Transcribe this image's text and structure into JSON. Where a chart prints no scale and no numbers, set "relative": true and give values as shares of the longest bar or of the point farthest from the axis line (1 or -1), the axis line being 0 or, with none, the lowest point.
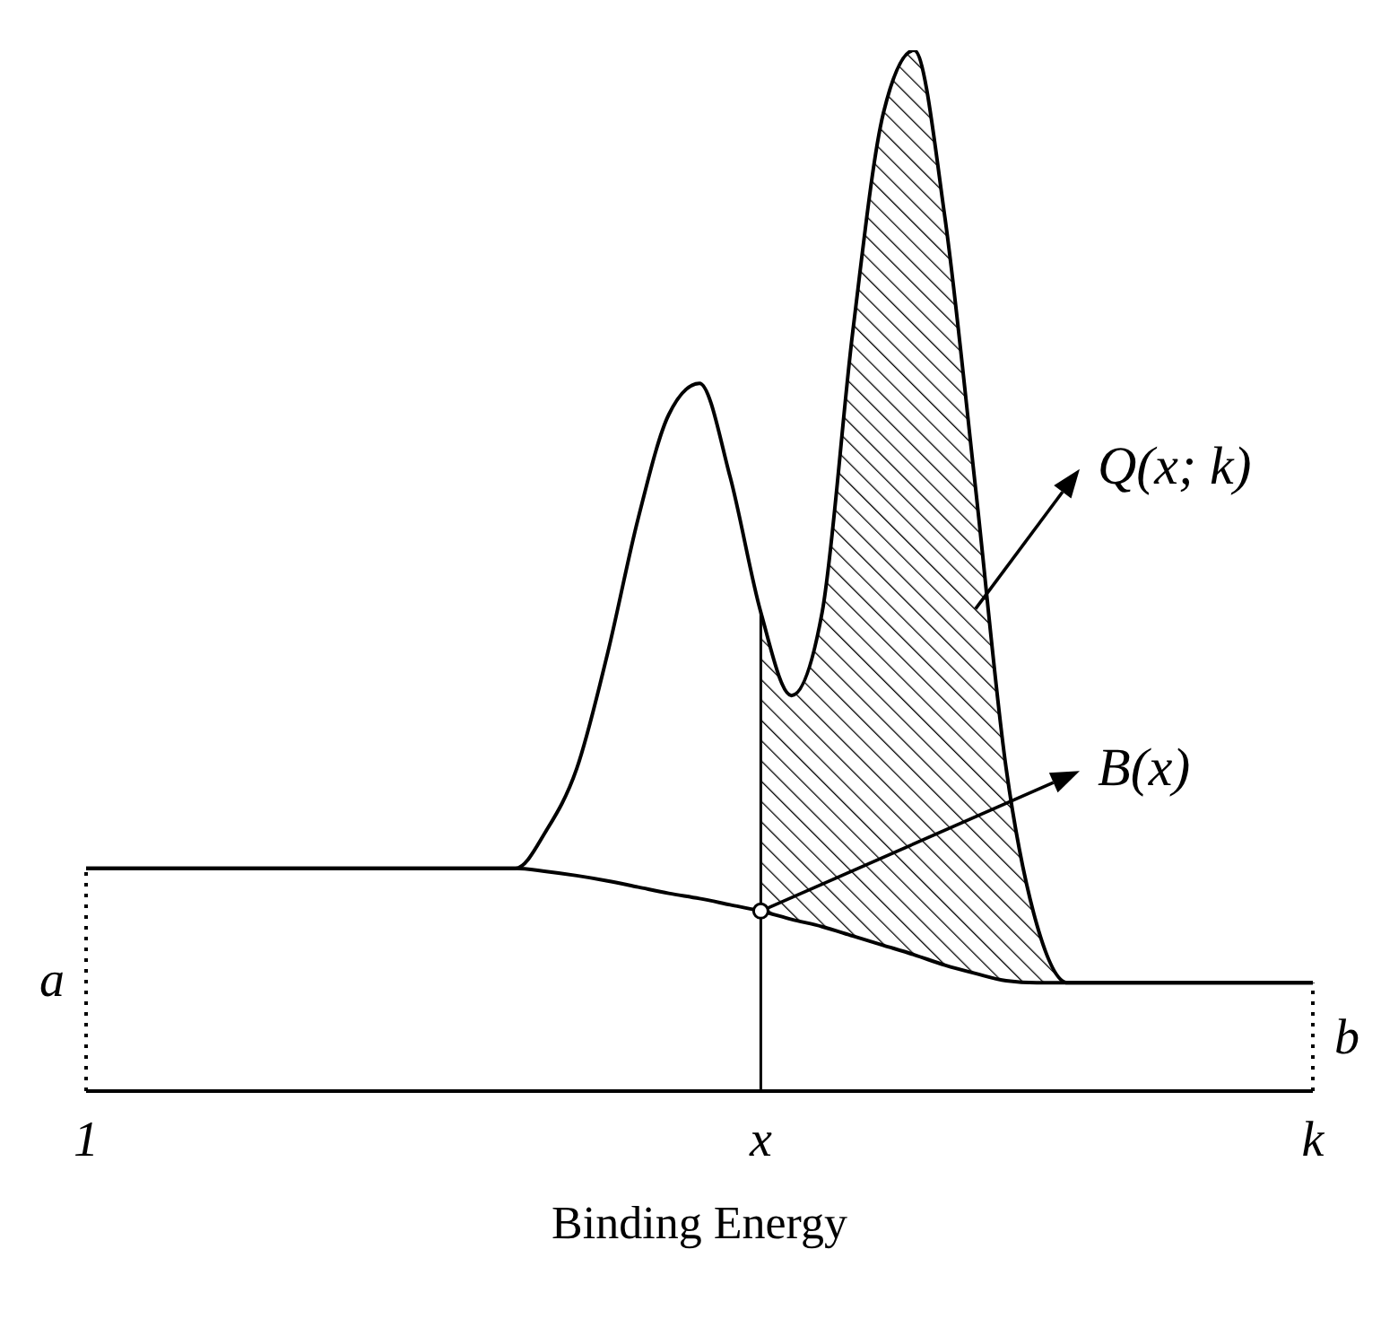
{
  "chart_data": {
    "type": "line",
    "relative": true,
    "xlabel": "Binding Energy",
    "tick_labels": "x",
    "grid": false,
    "categories": [
      "1",
      null,
      null,
      null,
      null,
      null,
      null,
      null,
      null,
      null,
      null,
      null,
      null,
      null,
      null,
      null,
      null,
      null,
      null,
      null,
      null,
      null,
      "x",
      null,
      null,
      null,
      null,
      null,
      null,
      null,
      null,
      null,
      null,
      null,
      null,
      null,
      null,
      null,
      null,
      null,
      "k"
    ],
    "series": [
      {
        "color": "#000000",
        "values": [
          0.214,
          0.214,
          0.214,
          0.214,
          0.214,
          0.214,
          0.214,
          0.214,
          0.214,
          0.214,
          0.214,
          0.214,
          0.214,
          0.214,
          0.214,
          0.25,
          0.31,
          0.42,
          0.55,
          0.65,
          0.68,
          0.59,
          0.46,
          0.38,
          0.46,
          0.73,
          0.94,
          1,
          0.84,
          0.58,
          0.31,
          0.16,
          0.104,
          0.104,
          0.104,
          0.104,
          0.104,
          0.104,
          0.104,
          0.104,
          0.104
        ]
      },
      {
        "color": "#000000",
        "values": [
          0.214,
          0.214,
          0.214,
          0.214,
          0.214,
          0.214,
          0.214,
          0.214,
          0.214,
          0.214,
          0.214,
          0.214,
          0.214,
          0.214,
          0.214,
          0.211,
          0.207,
          0.202,
          0.196,
          0.19,
          0.185,
          0.179,
          0.173,
          0.165,
          0.158,
          0.149,
          0.14,
          0.131,
          0.121,
          0.113,
          0.106,
          0.104,
          0.104,
          0.104,
          0.104,
          0.104,
          0.104,
          0.104,
          0.104,
          0.104,
          0.104
        ]
      },
      {
        "type": "area",
        "color": "#000000",
        "values": [
          null,
          null,
          null,
          null,
          null,
          null,
          null,
          null,
          null,
          null,
          null,
          null,
          null,
          null,
          null,
          null,
          null,
          null,
          null,
          null,
          null,
          null,
          0.46,
          0.38,
          0.46,
          0.73,
          0.94,
          1,
          0.84,
          0.58,
          0.31,
          0.16,
          0.104,
          null,
          null,
          null,
          null,
          null,
          null,
          null,
          null
        ]
      }
    ],
    "ref_lines": [
      {
        "axis": "x",
        "value": "1",
        "label": "a",
        "line_style": "dotted"
      },
      {
        "axis": "x",
        "value": "k",
        "label": "b",
        "line_style": "dotted"
      },
      {
        "axis": "x",
        "value": "x",
        "line_style": "solid"
      }
    ],
    "annotations": [
      "Q(x; k)",
      {
        "text": "B(x)",
        "x": "x",
        "y": 0.173
      }
    ]
  }
}
